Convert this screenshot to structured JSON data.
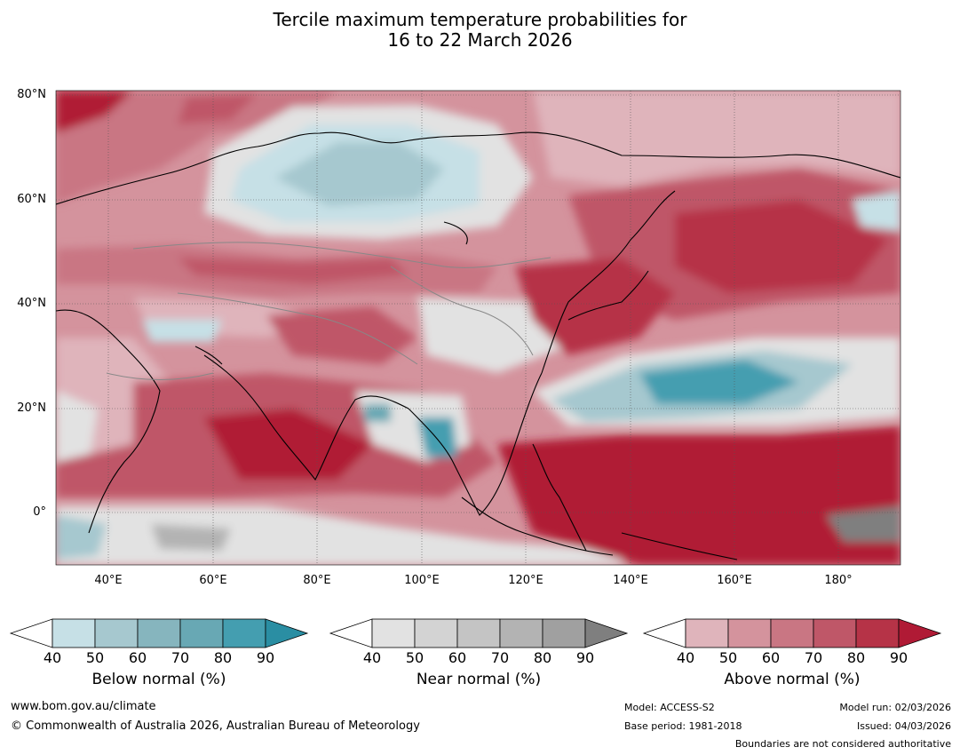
{
  "title": {
    "line1": "Tercile maximum temperature probabilities for",
    "line2": "16 to 22 March 2026"
  },
  "map": {
    "lat_labels": [
      "80°N",
      "60°N",
      "40°N",
      "20°N",
      "0°"
    ],
    "lon_labels": [
      "40°E",
      "60°E",
      "80°E",
      "100°E",
      "120°E",
      "140°E",
      "160°E",
      "180°"
    ],
    "lat_range": [
      -10,
      80
    ],
    "lon_range": [
      30,
      192
    ]
  },
  "colorbars": [
    {
      "id": "below",
      "label": "Below normal (%)",
      "ticks": [
        "40",
        "50",
        "60",
        "70",
        "80",
        "90"
      ],
      "colors": [
        "#ffffff",
        "#c6e0e6",
        "#a6c8cf",
        "#86b5be",
        "#68a8b4",
        "#449eb0",
        "#2a8ea3"
      ]
    },
    {
      "id": "near",
      "label": "Near normal (%)",
      "ticks": [
        "40",
        "50",
        "60",
        "70",
        "80",
        "90"
      ],
      "colors": [
        "#ffffff",
        "#e2e2e2",
        "#d3d3d3",
        "#c4c4c4",
        "#b3b3b3",
        "#a0a0a0",
        "#7f7f7f"
      ]
    },
    {
      "id": "above",
      "label": "Above normal (%)",
      "ticks": [
        "40",
        "50",
        "60",
        "70",
        "80",
        "90"
      ],
      "colors": [
        "#ffffff",
        "#dfb4bb",
        "#d4939d",
        "#c97683",
        "#bf5768",
        "#b63347",
        "#b01a35"
      ]
    }
  ],
  "footer": {
    "website": "www.bom.gov.au/climate",
    "copyright": "© Commonwealth of Australia 2026, Australian Bureau of Meteorology",
    "model": "Model: ACCESS-S2",
    "base_period": "Base period: 1981-2018",
    "model_run": "Model run: 02/03/2026",
    "issued": "Issued: 04/03/2026",
    "disclaimer": "Boundaries are not considered authoritative"
  }
}
